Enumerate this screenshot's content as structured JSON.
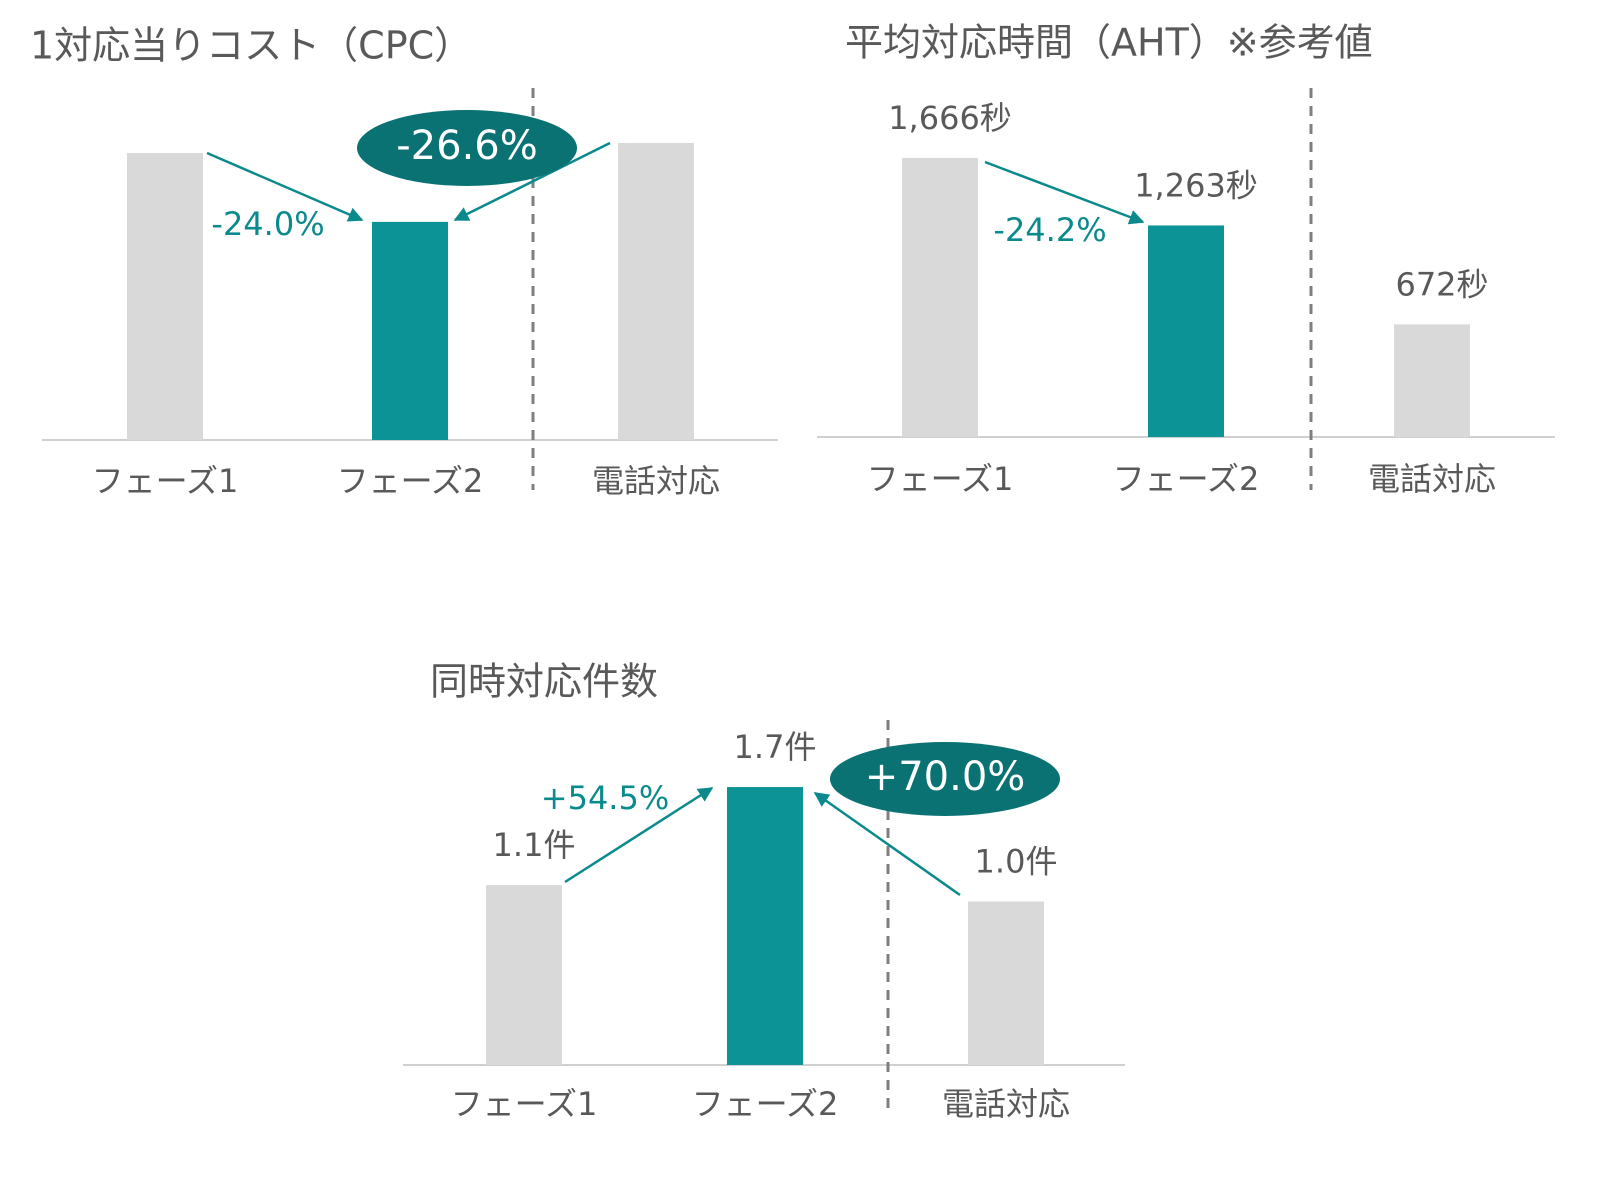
{
  "chart_data": [
    {
      "type": "bar",
      "title": "1対応当りコスト（CPC）",
      "categories": [
        "フェーズ1",
        "フェーズ2",
        "電話対応"
      ],
      "values": [
        100,
        76,
        103.5
      ],
      "colors": [
        "#d9d9d9",
        "#0b9396",
        "#d9d9d9"
      ],
      "ylim": [
        0,
        120
      ],
      "annotations": [
        "-24.0%",
        "-26.6%"
      ]
    },
    {
      "type": "bar",
      "title": "平均対応時間（AHT）※参考値",
      "categories": [
        "フェーズ1",
        "フェーズ2",
        "電話対応"
      ],
      "values": [
        1666,
        1263,
        672
      ],
      "value_labels": [
        "1,666秒",
        "1,263秒",
        "672秒"
      ],
      "colors": [
        "#d9d9d9",
        "#0b9396",
        "#d9d9d9"
      ],
      "ylim": [
        0,
        2000
      ],
      "annotations": [
        "-24.2%"
      ]
    },
    {
      "type": "bar",
      "title": "同時対応件数",
      "categories": [
        "フェーズ1",
        "フェーズ2",
        "電話対応"
      ],
      "values": [
        1.1,
        1.7,
        1.0
      ],
      "value_labels": [
        "1.1件",
        "1.7件",
        "1.0件"
      ],
      "colors": [
        "#d9d9d9",
        "#0b9396",
        "#d9d9d9"
      ],
      "ylim": [
        0,
        2
      ],
      "annotations": [
        "+54.5%",
        "+70.0%"
      ]
    }
  ]
}
